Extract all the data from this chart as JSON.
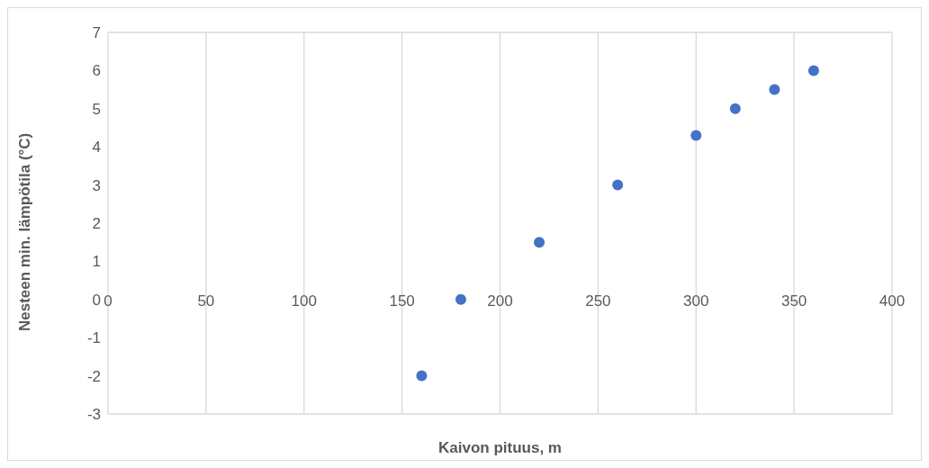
{
  "chart_data": {
    "type": "scatter",
    "xlabel": "Kaivon pituus, m",
    "ylabel": "Nesteen min. lämpötila (°C)",
    "x": [
      160,
      180,
      220,
      260,
      300,
      320,
      340,
      360
    ],
    "series": [
      {
        "color": "#4472c4",
        "values": [
          -2,
          0,
          1.5,
          3,
          4.3,
          5,
          5.5,
          6
        ]
      }
    ],
    "xlim": [
      0,
      400
    ],
    "xticks": [
      0,
      50,
      100,
      150,
      200,
      250,
      300,
      350,
      400
    ],
    "ylim": [
      -3,
      7
    ],
    "yticks": [
      -3,
      -2,
      -1,
      0,
      1,
      2,
      3,
      4,
      5,
      6,
      7
    ],
    "grid": true,
    "marker": "circle",
    "legend": false
  }
}
